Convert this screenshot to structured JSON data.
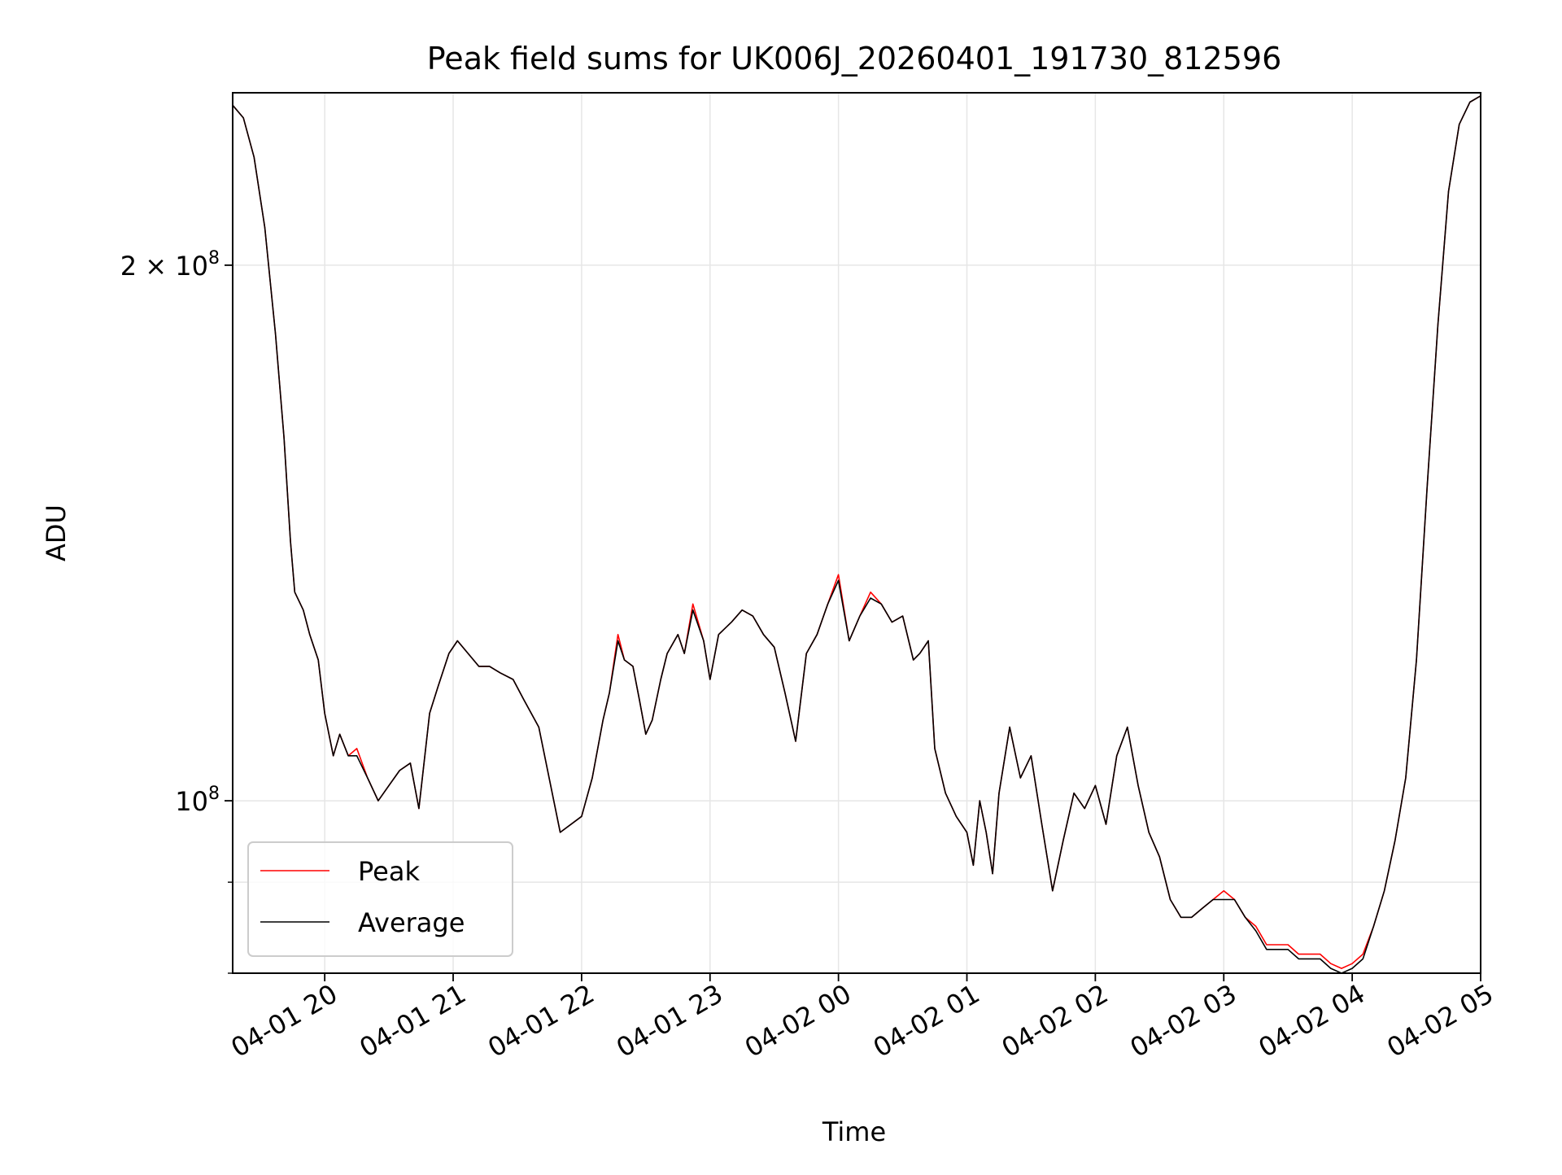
{
  "chart_data": {
    "type": "line",
    "title": "Peak field sums for UK006J_20260401_191730_812596",
    "xlabel": "Time",
    "ylabel": "ADU",
    "y_scale": "log",
    "ylim": [
      80000000,
      250000000
    ],
    "xlim": [
      "2026-04-01 19:17",
      "2026-04-02 05:00"
    ],
    "grid": true,
    "legend_position": "lower-left",
    "x_ticks": [
      {
        "value": "2026-04-01 20:00",
        "label": "04-01 20"
      },
      {
        "value": "2026-04-01 21:00",
        "label": "04-01 21"
      },
      {
        "value": "2026-04-01 22:00",
        "label": "04-01 22"
      },
      {
        "value": "2026-04-01 23:00",
        "label": "04-01 23"
      },
      {
        "value": "2026-04-02 00:00",
        "label": "04-02 00"
      },
      {
        "value": "2026-04-02 01:00",
        "label": "04-02 01"
      },
      {
        "value": "2026-04-02 02:00",
        "label": "04-02 02"
      },
      {
        "value": "2026-04-02 03:00",
        "label": "04-02 03"
      },
      {
        "value": "2026-04-02 04:00",
        "label": "04-02 04"
      },
      {
        "value": "2026-04-02 05:00",
        "label": "04-02 05"
      }
    ],
    "y_major_ticks": [
      {
        "value": 100000000,
        "label_base": "10",
        "label_exp": "8"
      },
      {
        "value": 200000000,
        "label_base": "2 × 10",
        "label_exp": "8"
      }
    ],
    "y_minor_ticks": [
      80000000,
      90000000
    ],
    "x": [
      "2026-04-01 19:17",
      "2026-04-01 19:22",
      "2026-04-01 19:27",
      "2026-04-01 19:32",
      "2026-04-01 19:37",
      "2026-04-01 19:41",
      "2026-04-01 19:44",
      "2026-04-01 19:46",
      "2026-04-01 19:50",
      "2026-04-01 19:53",
      "2026-04-01 19:57",
      "2026-04-01 20:00",
      "2026-04-01 20:04",
      "2026-04-01 20:07",
      "2026-04-01 20:11",
      "2026-04-01 20:15",
      "2026-04-01 20:20",
      "2026-04-01 20:25",
      "2026-04-01 20:30",
      "2026-04-01 20:35",
      "2026-04-01 20:40",
      "2026-04-01 20:44",
      "2026-04-01 20:49",
      "2026-04-01 20:53",
      "2026-04-01 20:58",
      "2026-04-01 21:02",
      "2026-04-01 21:07",
      "2026-04-01 21:12",
      "2026-04-01 21:17",
      "2026-04-01 21:22",
      "2026-04-01 21:28",
      "2026-04-01 21:33",
      "2026-04-01 21:40",
      "2026-04-01 21:50",
      "2026-04-01 22:00",
      "2026-04-01 22:05",
      "2026-04-01 22:10",
      "2026-04-01 22:13",
      "2026-04-01 22:17",
      "2026-04-01 22:20",
      "2026-04-01 22:24",
      "2026-04-01 22:27",
      "2026-04-01 22:30",
      "2026-04-01 22:33",
      "2026-04-01 22:37",
      "2026-04-01 22:40",
      "2026-04-01 22:45",
      "2026-04-01 22:48",
      "2026-04-01 22:52",
      "2026-04-01 22:57",
      "2026-04-01 23:00",
      "2026-04-01 23:04",
      "2026-04-01 23:10",
      "2026-04-01 23:15",
      "2026-04-01 23:20",
      "2026-04-01 23:25",
      "2026-04-01 23:30",
      "2026-04-01 23:35",
      "2026-04-01 23:40",
      "2026-04-01 23:45",
      "2026-04-01 23:50",
      "2026-04-01 23:55",
      "2026-04-02 00:00",
      "2026-04-02 00:05",
      "2026-04-02 00:10",
      "2026-04-02 00:15",
      "2026-04-02 00:20",
      "2026-04-02 00:25",
      "2026-04-02 00:30",
      "2026-04-02 00:35",
      "2026-04-02 00:38",
      "2026-04-02 00:42",
      "2026-04-02 00:45",
      "2026-04-02 00:50",
      "2026-04-02 00:55",
      "2026-04-02 01:00",
      "2026-04-02 01:03",
      "2026-04-02 01:06",
      "2026-04-02 01:09",
      "2026-04-02 01:12",
      "2026-04-02 01:15",
      "2026-04-02 01:20",
      "2026-04-02 01:25",
      "2026-04-02 01:30",
      "2026-04-02 01:35",
      "2026-04-02 01:40",
      "2026-04-02 01:45",
      "2026-04-02 01:50",
      "2026-04-02 01:55",
      "2026-04-02 02:00",
      "2026-04-02 02:05",
      "2026-04-02 02:10",
      "2026-04-02 02:15",
      "2026-04-02 02:20",
      "2026-04-02 02:25",
      "2026-04-02 02:30",
      "2026-04-02 02:35",
      "2026-04-02 02:40",
      "2026-04-02 02:45",
      "2026-04-02 02:50",
      "2026-04-02 02:55",
      "2026-04-02 03:00",
      "2026-04-02 03:05",
      "2026-04-02 03:10",
      "2026-04-02 03:15",
      "2026-04-02 03:20",
      "2026-04-02 03:25",
      "2026-04-02 03:30",
      "2026-04-02 03:35",
      "2026-04-02 03:40",
      "2026-04-02 03:45",
      "2026-04-02 03:50",
      "2026-04-02 03:55",
      "2026-04-02 04:00",
      "2026-04-02 04:05",
      "2026-04-02 04:10",
      "2026-04-02 04:15",
      "2026-04-02 04:20",
      "2026-04-02 04:25",
      "2026-04-02 04:30",
      "2026-04-02 04:35",
      "2026-04-02 04:40",
      "2026-04-02 04:45",
      "2026-04-02 04:50",
      "2026-04-02 04:55",
      "2026-04-02 05:00"
    ],
    "series": [
      {
        "name": "Peak",
        "color": "#ff0000",
        "values": [
          246000000,
          242000000,
          230000000,
          210000000,
          183000000,
          160000000,
          140000000,
          131000000,
          128000000,
          124000000,
          120000000,
          112000000,
          106000000,
          109000000,
          106000000,
          107000000,
          103000000,
          100000000,
          102000000,
          104000000,
          105000000,
          99000000,
          112000000,
          116000000,
          121000000,
          123000000,
          121000000,
          119000000,
          119000000,
          118000000,
          117000000,
          114000000,
          110000000,
          96000000,
          98000000,
          103000000,
          111000000,
          115000000,
          124000000,
          120000000,
          119000000,
          114000000,
          109000000,
          111000000,
          117000000,
          121000000,
          124000000,
          121000000,
          129000000,
          123000000,
          117000000,
          124000000,
          126000000,
          128000000,
          127000000,
          124000000,
          122000000,
          115000000,
          108000000,
          121000000,
          124000000,
          129000000,
          134000000,
          123000000,
          127000000,
          131000000,
          129000000,
          126000000,
          127000000,
          120000000,
          121000000,
          123000000,
          107000000,
          101000000,
          98000000,
          96000000,
          92000000,
          100000000,
          96000000,
          91000000,
          101000000,
          110000000,
          103000000,
          106000000,
          97000000,
          89000000,
          95000000,
          101000000,
          99000000,
          102000000,
          97000000,
          106000000,
          110000000,
          102000000,
          96000000,
          93000000,
          88000000,
          86000000,
          86000000,
          87000000,
          88000000,
          89000000,
          88000000,
          86000000,
          85000000,
          83000000,
          83000000,
          83000000,
          82000000,
          82000000,
          82000000,
          81000000,
          80500000,
          81000000,
          82000000,
          85000000,
          89000000,
          95000000,
          103000000,
          120000000,
          150000000,
          185000000,
          220000000,
          240000000,
          247000000,
          249000000
        ]
      },
      {
        "name": "Average",
        "color": "#000000",
        "values": [
          246000000,
          242000000,
          230000000,
          210000000,
          183000000,
          160000000,
          140000000,
          131000000,
          128000000,
          124000000,
          120000000,
          112000000,
          106000000,
          109000000,
          106000000,
          106000000,
          103000000,
          100000000,
          102000000,
          104000000,
          105000000,
          99000000,
          112000000,
          116000000,
          121000000,
          123000000,
          121000000,
          119000000,
          119000000,
          118000000,
          117000000,
          114000000,
          110000000,
          96000000,
          98000000,
          103000000,
          111000000,
          115000000,
          123000000,
          120000000,
          119000000,
          114000000,
          109000000,
          111000000,
          117000000,
          121000000,
          124000000,
          121000000,
          128000000,
          123000000,
          117000000,
          124000000,
          126000000,
          128000000,
          127000000,
          124000000,
          122000000,
          115000000,
          108000000,
          121000000,
          124000000,
          129000000,
          133000000,
          123000000,
          127000000,
          130000000,
          129000000,
          126000000,
          127000000,
          120000000,
          121000000,
          123000000,
          107000000,
          101000000,
          98000000,
          96000000,
          92000000,
          100000000,
          96000000,
          91000000,
          101000000,
          110000000,
          103000000,
          106000000,
          97000000,
          89000000,
          95000000,
          101000000,
          99000000,
          102000000,
          97000000,
          106000000,
          110000000,
          102000000,
          96000000,
          93000000,
          88000000,
          86000000,
          86000000,
          87000000,
          88000000,
          88000000,
          88000000,
          86000000,
          84500000,
          82500000,
          82500000,
          82500000,
          81500000,
          81500000,
          81500000,
          80500000,
          80000000,
          80500000,
          81500000,
          85000000,
          89000000,
          95000000,
          103000000,
          120000000,
          150000000,
          185000000,
          220000000,
          240000000,
          247000000,
          249000000
        ]
      }
    ]
  }
}
